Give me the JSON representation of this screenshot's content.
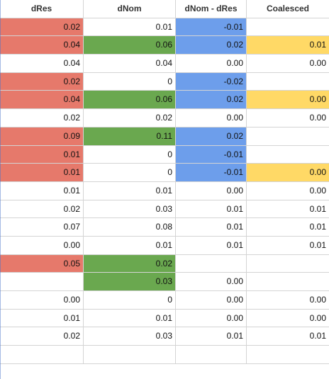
{
  "headers": [
    "dRes",
    "dNom",
    "dNom -  dRes",
    "Coalesced"
  ],
  "colors": {
    "red": "#e6796b",
    "green": "#6aa84f",
    "blue": "#6d9eeb",
    "yellow": "#ffd966",
    "grid": "#d4d4d4"
  },
  "rows": [
    {
      "cells": [
        "0.02",
        "0.01",
        "-0.01",
        ""
      ],
      "fills": [
        "red",
        "",
        "blue",
        ""
      ]
    },
    {
      "cells": [
        "0.04",
        "0.06",
        "0.02",
        "0.01"
      ],
      "fills": [
        "red",
        "green",
        "blue",
        "yellow"
      ]
    },
    {
      "cells": [
        "0.04",
        "0.04",
        "0.00",
        "0.00"
      ],
      "fills": [
        "",
        "",
        "",
        ""
      ]
    },
    {
      "cells": [
        "0.02",
        "0",
        "-0.02",
        ""
      ],
      "fills": [
        "red",
        "",
        "blue",
        ""
      ]
    },
    {
      "cells": [
        "0.04",
        "0.06",
        "0.02",
        "0.00"
      ],
      "fills": [
        "red",
        "green",
        "blue",
        "yellow"
      ]
    },
    {
      "cells": [
        "0.02",
        "0.02",
        "0.00",
        "0.00"
      ],
      "fills": [
        "",
        "",
        "",
        ""
      ]
    },
    {
      "cells": [
        "0.09",
        "0.11",
        "0.02",
        ""
      ],
      "fills": [
        "red",
        "green",
        "blue",
        ""
      ]
    },
    {
      "cells": [
        "0.01",
        "0",
        "-0.01",
        ""
      ],
      "fills": [
        "red",
        "",
        "blue",
        ""
      ]
    },
    {
      "cells": [
        "0.01",
        "0",
        "-0.01",
        "0.00"
      ],
      "fills": [
        "red",
        "",
        "blue",
        "yellow"
      ]
    },
    {
      "cells": [
        "0.01",
        "0.01",
        "0.00",
        "0.00"
      ],
      "fills": [
        "",
        "",
        "",
        ""
      ]
    },
    {
      "cells": [
        "0.02",
        "0.03",
        "0.01",
        "0.01"
      ],
      "fills": [
        "",
        "",
        "",
        ""
      ]
    },
    {
      "cells": [
        "0.07",
        "0.08",
        "0.01",
        "0.01"
      ],
      "fills": [
        "",
        "",
        "",
        ""
      ]
    },
    {
      "cells": [
        "0.00",
        "0.01",
        "0.01",
        "0.01"
      ],
      "fills": [
        "",
        "",
        "",
        ""
      ]
    },
    {
      "cells": [
        "0.05",
        "0.02",
        "",
        ""
      ],
      "fills": [
        "red",
        "green",
        "",
        ""
      ]
    },
    {
      "cells": [
        "",
        "0.03",
        "0.00",
        ""
      ],
      "fills": [
        "",
        "green",
        "",
        ""
      ]
    },
    {
      "cells": [
        "0.00",
        "0",
        "0.00",
        "0.00"
      ],
      "fills": [
        "",
        "",
        "",
        ""
      ]
    },
    {
      "cells": [
        "0.01",
        "0.01",
        "0.00",
        "0.00"
      ],
      "fills": [
        "",
        "",
        "",
        ""
      ]
    },
    {
      "cells": [
        "0.02",
        "0.03",
        "0.01",
        "0.01"
      ],
      "fills": [
        "",
        "",
        "",
        ""
      ]
    },
    {
      "cells": [
        "",
        "",
        "",
        ""
      ],
      "fills": [
        "",
        "",
        "",
        ""
      ]
    }
  ]
}
